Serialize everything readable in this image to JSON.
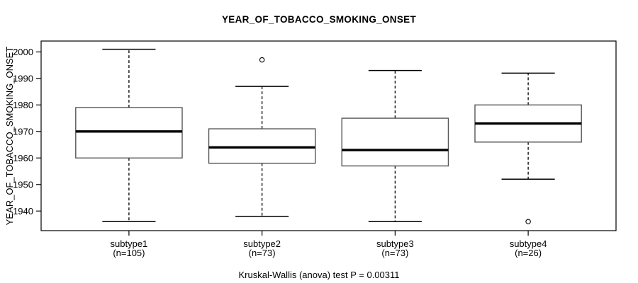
{
  "chart_data": {
    "type": "boxplot",
    "title": "YEAR_OF_TOBACCO_SMOKING_ONSET",
    "ylabel": "YEAR_OF_TOBACCO_SMOKING_ONSET",
    "xlabel": "",
    "footnote": "Kruskal-Wallis (anova) test P = 0.00311",
    "ylim": [
      1932.6,
      2004.1
    ],
    "xlim": [
      0.34,
      4.66
    ],
    "yticks": [
      1940,
      1950,
      1960,
      1970,
      1980,
      1990,
      2000
    ],
    "grid": false,
    "legend": "none",
    "categories": [
      "subtype1",
      "subtype2",
      "subtype3",
      "subtype4"
    ],
    "category_sublabels": [
      "(n=105)",
      "(n=73)",
      "(n=73)",
      "(n=26)"
    ],
    "series": [
      {
        "name": "subtype1",
        "n": 105,
        "whisker_low": 1936,
        "q1": 1960,
        "median": 1970,
        "q3": 1979,
        "whisker_high": 2001,
        "outliers": []
      },
      {
        "name": "subtype2",
        "n": 73,
        "whisker_low": 1938,
        "q1": 1958,
        "median": 1964,
        "q3": 1971,
        "whisker_high": 1987,
        "outliers": [
          1997
        ]
      },
      {
        "name": "subtype3",
        "n": 73,
        "whisker_low": 1936,
        "q1": 1957,
        "median": 1963,
        "q3": 1975,
        "whisker_high": 1993,
        "outliers": []
      },
      {
        "name": "subtype4",
        "n": 26,
        "whisker_low": 1952,
        "q1": 1966,
        "median": 1973,
        "q3": 1980,
        "whisker_high": 1992,
        "outliers": [
          1936
        ]
      }
    ]
  },
  "colors": {
    "background": "#ffffff",
    "text": "#000000",
    "axis_line": "#000000",
    "box_border": "#555555",
    "median_line": "#000000",
    "whisker_line": "#000000"
  }
}
